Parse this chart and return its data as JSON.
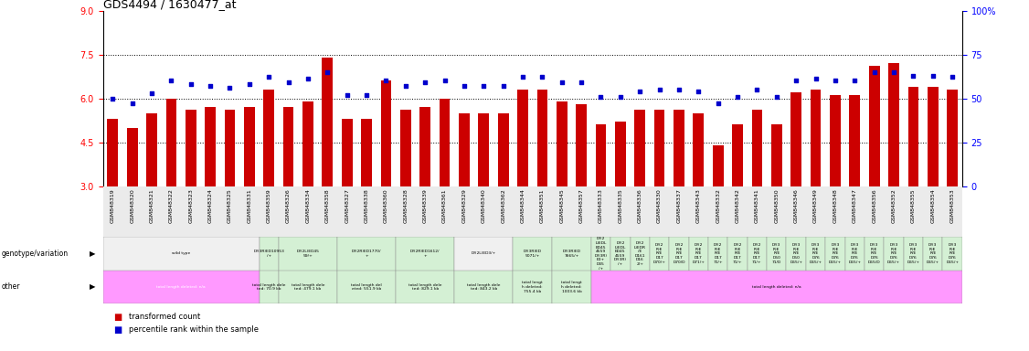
{
  "title": "GDS4494 / 1630477_at",
  "samples": [
    "GSM848319",
    "GSM848320",
    "GSM848321",
    "GSM848322",
    "GSM848323",
    "GSM848324",
    "GSM848325",
    "GSM848331",
    "GSM848359",
    "GSM848326",
    "GSM848334",
    "GSM848358",
    "GSM848327",
    "GSM848338",
    "GSM848360",
    "GSM848328",
    "GSM848339",
    "GSM848361",
    "GSM848329",
    "GSM848340",
    "GSM848362",
    "GSM848344",
    "GSM848351",
    "GSM848345",
    "GSM848357",
    "GSM848333",
    "GSM848335",
    "GSM848336",
    "GSM848330",
    "GSM848337",
    "GSM848343",
    "GSM848332",
    "GSM848342",
    "GSM848341",
    "GSM848350",
    "GSM848346",
    "GSM848349",
    "GSM848348",
    "GSM848347",
    "GSM848356",
    "GSM848352",
    "GSM848355",
    "GSM848354",
    "GSM848353"
  ],
  "bar_values": [
    5.3,
    5.0,
    5.5,
    6.0,
    5.6,
    5.7,
    5.6,
    5.7,
    6.3,
    5.7,
    5.9,
    7.4,
    5.3,
    5.3,
    6.6,
    5.6,
    5.7,
    6.0,
    5.5,
    5.5,
    5.5,
    6.3,
    6.3,
    5.9,
    5.8,
    5.1,
    5.2,
    5.6,
    5.6,
    5.6,
    5.5,
    4.4,
    5.1,
    5.6,
    5.1,
    6.2,
    6.3,
    6.1,
    6.1,
    7.1,
    7.2,
    6.4,
    6.4,
    6.3
  ],
  "percentile_values": [
    50,
    47,
    53,
    60,
    58,
    57,
    56,
    58,
    62,
    59,
    61,
    65,
    52,
    52,
    60,
    57,
    59,
    60,
    57,
    57,
    57,
    62,
    62,
    59,
    59,
    51,
    51,
    54,
    55,
    55,
    54,
    47,
    51,
    55,
    51,
    60,
    61,
    60,
    60,
    65,
    65,
    63,
    63,
    62
  ],
  "bar_color": "#cc0000",
  "percentile_color": "#0000cc",
  "ylim_left": [
    3,
    9
  ],
  "yticks_left": [
    3,
    4.5,
    6,
    7.5,
    9
  ],
  "ylim_right": [
    0,
    100
  ],
  "yticks_right": [
    0,
    25,
    50,
    75,
    100
  ],
  "ytick_right_labels": [
    "0",
    "25",
    "50",
    "75",
    "100%"
  ],
  "dotted_lines": [
    4.5,
    6.0,
    7.5
  ],
  "background_chart": "#ffffff",
  "background_fig": "#ffffff",
  "geno_groups": [
    {
      "start": 0,
      "end": 8,
      "text": "wild type",
      "bg": "#f0f0f0"
    },
    {
      "start": 8,
      "end": 9,
      "text": "Df(3R)ED10953\n/+",
      "bg": "#d4f0d4"
    },
    {
      "start": 9,
      "end": 12,
      "text": "Df(2L)ED45\n59/+",
      "bg": "#d4f0d4"
    },
    {
      "start": 12,
      "end": 15,
      "text": "Df(2R)ED1770/\n+",
      "bg": "#d4f0d4"
    },
    {
      "start": 15,
      "end": 18,
      "text": "Df(2R)ED1612/\n+",
      "bg": "#d4f0d4"
    },
    {
      "start": 18,
      "end": 21,
      "text": "Df(2L)ED3/+",
      "bg": "#f0f0f0"
    },
    {
      "start": 21,
      "end": 23,
      "text": "Df(3R)ED\n5071/+",
      "bg": "#d4f0d4"
    },
    {
      "start": 23,
      "end": 25,
      "text": "Df(3R)ED\n7665/+",
      "bg": "#d4f0d4"
    },
    {
      "start": 25,
      "end": 26,
      "text": "Df(2\nL)EDL\nED45\n4559\nDf(3R)\nE3+\nD45\n/+",
      "bg": "#d4f0d4"
    },
    {
      "start": 26,
      "end": 27,
      "text": "Df(2\nL)EDL\nED45\n4559\nDf(3R)\n/+",
      "bg": "#d4f0d4"
    },
    {
      "start": 27,
      "end": 28,
      "text": "Df(2\nL)EDR\n/E\nD161\nD16\n2/+",
      "bg": "#d4f0d4"
    },
    {
      "start": 28,
      "end": 29,
      "text": "Df(2\nR)E\nR/E\nD17\nD70/+",
      "bg": "#d4f0d4"
    },
    {
      "start": 29,
      "end": 30,
      "text": "Df(2\nR)E\nR/E\nD17\nD70/D",
      "bg": "#d4f0d4"
    },
    {
      "start": 30,
      "end": 31,
      "text": "Df(2\nR)E\nR/E\nD17\nD71/+",
      "bg": "#d4f0d4"
    },
    {
      "start": 31,
      "end": 32,
      "text": "Df(2\nR)E\nR/E\nD17\n71/+",
      "bg": "#d4f0d4"
    },
    {
      "start": 32,
      "end": 33,
      "text": "Df(2\nR)E\nR/E\nD17\n71/+",
      "bg": "#d4f0d4"
    },
    {
      "start": 33,
      "end": 34,
      "text": "Df(2\nR)E\nR/E\nD17\n71/+",
      "bg": "#d4f0d4"
    },
    {
      "start": 34,
      "end": 35,
      "text": "Df(3\nR)E\nR/E\nD50\n71/D",
      "bg": "#d4f0d4"
    },
    {
      "start": 35,
      "end": 36,
      "text": "Df(3\nR)E\nR/E\nD50\nD65/+",
      "bg": "#d4f0d4"
    },
    {
      "start": 36,
      "end": 37,
      "text": "Df(3\nR)E\nR/E\nD76\nD65/+",
      "bg": "#d4f0d4"
    },
    {
      "start": 37,
      "end": 38,
      "text": "Df(3\nR)E\nR/E\nD76\nD65/+",
      "bg": "#d4f0d4"
    },
    {
      "start": 38,
      "end": 39,
      "text": "Df(3\nR)E\nR/E\nD76\nD65/+",
      "bg": "#d4f0d4"
    },
    {
      "start": 39,
      "end": 40,
      "text": "Df(3\nR)E\nR/E\nD76\nD65/D",
      "bg": "#d4f0d4"
    },
    {
      "start": 40,
      "end": 41,
      "text": "Df(3\nR)E\nR/E\nD76\nD65/+",
      "bg": "#d4f0d4"
    },
    {
      "start": 41,
      "end": 42,
      "text": "Df(3\nR)E\nR/E\nD76\nD65/+",
      "bg": "#d4f0d4"
    },
    {
      "start": 42,
      "end": 43,
      "text": "Df(3\nR)E\nR/E\nD76\nD65/+",
      "bg": "#d4f0d4"
    },
    {
      "start": 43,
      "end": 44,
      "text": "Df(3\nR)E\nR/E\nD76\nD65/+",
      "bg": "#d4f0d4"
    }
  ],
  "other_groups": [
    {
      "start": 0,
      "end": 8,
      "text": "total length deleted: n/a",
      "bg": "#ff99ff",
      "tc": "#ffffff"
    },
    {
      "start": 8,
      "end": 9,
      "text": "total length dele\nted: 70.9 kb",
      "bg": "#d4f0d4",
      "tc": "#000000"
    },
    {
      "start": 9,
      "end": 12,
      "text": "total length dele\nted: 479.1 kb",
      "bg": "#d4f0d4",
      "tc": "#000000"
    },
    {
      "start": 12,
      "end": 15,
      "text": "total length del\neted: 551.9 kb",
      "bg": "#d4f0d4",
      "tc": "#000000"
    },
    {
      "start": 15,
      "end": 18,
      "text": "total length dele\nted: 829.1 kb",
      "bg": "#d4f0d4",
      "tc": "#000000"
    },
    {
      "start": 18,
      "end": 21,
      "text": "total length dele\nted: 843.2 kb",
      "bg": "#d4f0d4",
      "tc": "#000000"
    },
    {
      "start": 21,
      "end": 23,
      "text": "total lengt\nh deleted:\n755.4 kb",
      "bg": "#d4f0d4",
      "tc": "#000000"
    },
    {
      "start": 23,
      "end": 25,
      "text": "total lengt\nh deleted:\n1003.6 kb",
      "bg": "#d4f0d4",
      "tc": "#000000"
    },
    {
      "start": 25,
      "end": 44,
      "text": "total length deleted: n/a",
      "bg": "#ff99ff",
      "tc": "#000000"
    }
  ]
}
